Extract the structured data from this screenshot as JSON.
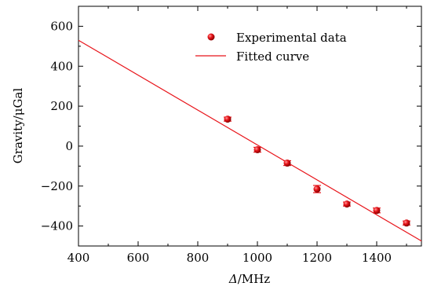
{
  "chart_data": {
    "type": "scatter",
    "xlabel_italic": "Δ",
    "xlabel_unit": "/MHz",
    "ylabel": "Gravity/μGal",
    "xlim": [
      400,
      1550
    ],
    "ylim": [
      -500,
      700
    ],
    "x_ticks": [
      400,
      600,
      800,
      1000,
      1200,
      1400
    ],
    "x_tick_labels": [
      "400",
      "600",
      "800",
      "1000",
      "1200",
      "1400"
    ],
    "y_ticks": [
      -400,
      -200,
      0,
      200,
      400,
      600
    ],
    "y_tick_labels": [
      "−400",
      "−200",
      "0",
      "200",
      "400",
      "600"
    ],
    "series": [
      {
        "name": "Experimental data",
        "kind": "points",
        "color": "#e8141a",
        "x": [
          900,
          1000,
          1100,
          1200,
          1300,
          1400,
          1500
        ],
        "y": [
          135,
          -18,
          -85,
          -215,
          -290,
          -322,
          -385
        ],
        "yerr": [
          10,
          12,
          12,
          18,
          10,
          12,
          10
        ]
      },
      {
        "name": "Fitted curve",
        "kind": "line",
        "color": "#e8141a",
        "x": [
          400,
          1550
        ],
        "y": [
          530,
          -475
        ]
      }
    ],
    "legend_position": "top-right",
    "grid": false
  }
}
